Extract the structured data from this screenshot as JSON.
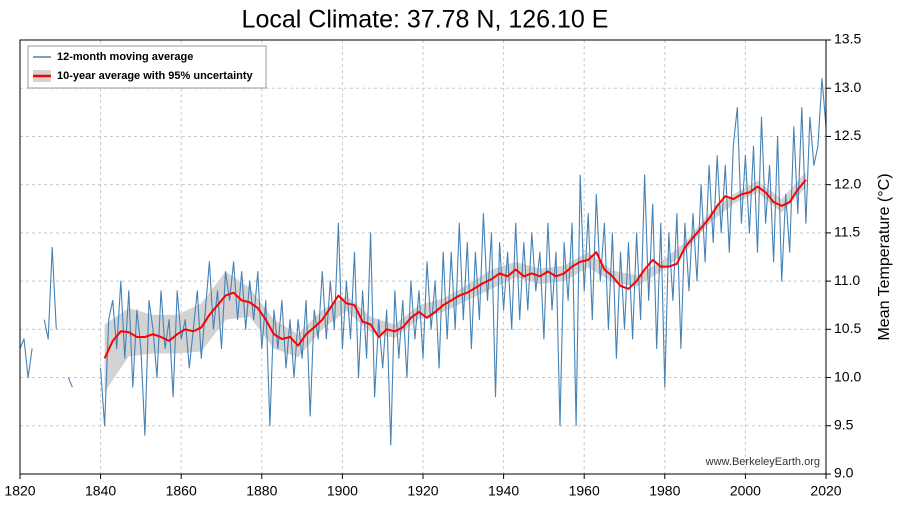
{
  "chart_data": {
    "type": "line",
    "title": "Local Climate: 37.78 N, 126.10 E",
    "y_label": "Mean Temperature (°C)",
    "credit": "www.BerkeleyEarth.org",
    "legend": "upper left",
    "grid": true,
    "xlim": [
      1820,
      2020
    ],
    "xticks": [
      1820,
      1840,
      1860,
      1880,
      1900,
      1920,
      1940,
      1960,
      1980,
      2000,
      2020
    ],
    "ylim": [
      9,
      13.5
    ],
    "yticks": [
      {
        "value": 9,
        "label": "9.0"
      },
      9.5,
      {
        "value": 10,
        "label": "10.0"
      },
      10.5,
      {
        "value": 11,
        "label": "11.0"
      },
      11.5,
      {
        "value": 12,
        "label": "12.0"
      },
      12.5,
      {
        "value": 13,
        "label": "13.0"
      },
      13.5
    ],
    "series": [
      {
        "name": "12-month moving average",
        "color": "#4682b4",
        "x": [
          1820,
          1821,
          1822,
          1823,
          1824,
          1826,
          1827,
          1828,
          1829,
          1830,
          1832,
          1833,
          1834,
          1840,
          1841,
          1842,
          1843,
          1844,
          1845,
          1846,
          1847,
          1848,
          1849,
          1850,
          1851,
          1852,
          1853,
          1854,
          1855,
          1856,
          1857,
          1858,
          1859,
          1860,
          1861,
          1862,
          1863,
          1864,
          1865,
          1866,
          1867,
          1868,
          1869,
          1870,
          1871,
          1872,
          1873,
          1874,
          1875,
          1876,
          1877,
          1878,
          1879,
          1880,
          1881,
          1882,
          1883,
          1884,
          1885,
          1886,
          1887,
          1888,
          1889,
          1890,
          1891,
          1892,
          1893,
          1894,
          1895,
          1896,
          1897,
          1898,
          1899,
          1900,
          1901,
          1902,
          1903,
          1904,
          1905,
          1906,
          1907,
          1908,
          1909,
          1910,
          1911,
          1912,
          1913,
          1914,
          1915,
          1916,
          1917,
          1918,
          1919,
          1920,
          1921,
          1922,
          1923,
          1924,
          1925,
          1926,
          1927,
          1928,
          1929,
          1930,
          1931,
          1932,
          1933,
          1934,
          1935,
          1936,
          1937,
          1938,
          1939,
          1940,
          1941,
          1942,
          1943,
          1944,
          1945,
          1946,
          1947,
          1948,
          1949,
          1950,
          1951,
          1952,
          1953,
          1954,
          1955,
          1956,
          1957,
          1958,
          1959,
          1960,
          1961,
          1962,
          1963,
          1964,
          1965,
          1966,
          1967,
          1968,
          1969,
          1970,
          1971,
          1972,
          1973,
          1974,
          1975,
          1976,
          1977,
          1978,
          1979,
          1980,
          1981,
          1982,
          1983,
          1984,
          1985,
          1986,
          1987,
          1988,
          1989,
          1990,
          1991,
          1992,
          1993,
          1994,
          1995,
          1996,
          1997,
          1998,
          1999,
          2000,
          2001,
          2002,
          2003,
          2004,
          2005,
          2006,
          2007,
          2008,
          2009,
          2010,
          2011,
          2012,
          2013,
          2014,
          2015,
          2016,
          2017,
          2018,
          2019,
          2020
        ],
        "values": [
          10.3,
          10.4,
          10.0,
          10.3,
          null,
          10.6,
          10.4,
          11.35,
          10.5,
          null,
          10.0,
          9.9,
          null,
          10.1,
          9.5,
          10.6,
          10.8,
          10.3,
          11.0,
          10.2,
          10.9,
          9.9,
          10.7,
          10.3,
          9.4,
          10.8,
          10.5,
          10.0,
          10.9,
          10.3,
          10.6,
          9.8,
          10.9,
          10.4,
          10.6,
          10.1,
          10.5,
          10.9,
          10.2,
          10.7,
          11.2,
          10.5,
          10.9,
          10.3,
          11.1,
          10.8,
          11.2,
          10.6,
          11.1,
          10.5,
          11.0,
          10.6,
          11.1,
          10.3,
          10.8,
          9.5,
          10.7,
          10.3,
          10.8,
          10.1,
          10.6,
          10.0,
          10.6,
          10.2,
          10.8,
          9.6,
          10.7,
          10.4,
          11.1,
          10.4,
          11.0,
          10.5,
          11.6,
          10.3,
          11.0,
          10.4,
          11.3,
          10.0,
          10.9,
          10.2,
          11.5,
          9.8,
          10.6,
          10.1,
          10.7,
          9.3,
          10.9,
          10.2,
          10.8,
          10.0,
          11.0,
          10.4,
          10.9,
          10.2,
          11.2,
          10.5,
          11.0,
          10.1,
          11.3,
          10.4,
          11.3,
          10.5,
          11.6,
          10.6,
          11.4,
          10.3,
          11.3,
          10.6,
          11.7,
          10.8,
          11.5,
          9.8,
          11.4,
          10.7,
          11.3,
          10.5,
          11.6,
          10.6,
          11.4,
          10.7,
          11.5,
          10.9,
          11.3,
          10.4,
          11.6,
          10.7,
          11.3,
          9.5,
          11.4,
          10.8,
          11.6,
          9.5,
          12.1,
          10.9,
          11.7,
          10.6,
          11.9,
          11.0,
          11.6,
          10.5,
          11.5,
          10.2,
          11.3,
          10.5,
          11.4,
          10.4,
          11.5,
          10.6,
          12.1,
          10.8,
          11.8,
          10.3,
          11.6,
          9.9,
          11.5,
          10.8,
          11.7,
          10.3,
          11.6,
          10.9,
          11.7,
          11.0,
          12.0,
          11.2,
          12.2,
          11.4,
          12.3,
          11.5,
          12.2,
          11.3,
          12.4,
          12.8,
          11.6,
          12.3,
          11.5,
          12.4,
          11.3,
          12.7,
          11.6,
          12.2,
          11.2,
          12.5,
          11.0,
          11.9,
          11.3,
          12.6,
          11.7,
          12.8,
          11.6,
          12.7,
          12.2,
          12.4,
          13.1,
          12.6
        ]
      },
      {
        "name": "10-year average with 95% uncertainty",
        "color": "#ff0000",
        "x": [
          1841,
          1843,
          1845,
          1847,
          1849,
          1851,
          1853,
          1855,
          1857,
          1859,
          1861,
          1863,
          1865,
          1867,
          1869,
          1871,
          1873,
          1875,
          1877,
          1879,
          1881,
          1883,
          1885,
          1887,
          1889,
          1891,
          1893,
          1895,
          1897,
          1899,
          1901,
          1903,
          1905,
          1907,
          1909,
          1911,
          1913,
          1915,
          1917,
          1919,
          1921,
          1923,
          1925,
          1927,
          1929,
          1931,
          1933,
          1935,
          1937,
          1939,
          1941,
          1943,
          1945,
          1947,
          1949,
          1951,
          1953,
          1955,
          1957,
          1959,
          1961,
          1963,
          1965,
          1967,
          1969,
          1971,
          1973,
          1975,
          1977,
          1979,
          1981,
          1983,
          1985,
          1987,
          1989,
          1991,
          1993,
          1995,
          1997,
          1999,
          2001,
          2003,
          2005,
          2007,
          2009,
          2011,
          2013,
          2015
        ],
        "values": [
          10.2,
          10.38,
          10.48,
          10.47,
          10.42,
          10.42,
          10.45,
          10.42,
          10.38,
          10.45,
          10.5,
          10.48,
          10.52,
          10.65,
          10.75,
          10.85,
          10.88,
          10.8,
          10.78,
          10.72,
          10.6,
          10.45,
          10.4,
          10.42,
          10.33,
          10.45,
          10.52,
          10.6,
          10.72,
          10.85,
          10.77,
          10.75,
          10.58,
          10.55,
          10.42,
          10.5,
          10.48,
          10.52,
          10.62,
          10.68,
          10.62,
          10.68,
          10.75,
          10.8,
          10.85,
          10.88,
          10.93,
          10.98,
          11.02,
          11.08,
          11.05,
          11.12,
          11.05,
          11.08,
          11.05,
          11.1,
          11.05,
          11.08,
          11.15,
          11.2,
          11.22,
          11.3,
          11.12,
          11.05,
          10.95,
          10.92,
          11.0,
          11.12,
          11.22,
          11.15,
          11.15,
          11.18,
          11.35,
          11.45,
          11.55,
          11.65,
          11.78,
          11.88,
          11.85,
          11.9,
          11.92,
          11.98,
          11.92,
          11.82,
          11.78,
          11.82,
          11.95,
          12.05
        ]
      }
    ],
    "band": {
      "color": "#d3d3d3",
      "x": [
        1841,
        1847,
        1853,
        1859,
        1865,
        1871,
        1877,
        1883,
        1889,
        1895,
        1901,
        1907,
        1913,
        1919,
        1925,
        1931,
        1937,
        1943,
        1949,
        1955,
        1961,
        1967,
        1973,
        1979,
        1985,
        1991,
        1997,
        2003,
        2009,
        2015
      ],
      "upper": [
        10.55,
        10.72,
        10.65,
        10.65,
        10.77,
        11.1,
        10.93,
        10.6,
        10.45,
        10.7,
        10.85,
        10.63,
        10.55,
        10.75,
        10.82,
        10.96,
        11.12,
        11.2,
        11.13,
        11.16,
        11.3,
        11.11,
        11.06,
        11.2,
        11.4,
        11.7,
        11.9,
        12.04,
        11.85,
        12.13
      ],
      "lower": [
        9.85,
        10.22,
        10.25,
        10.25,
        10.27,
        10.6,
        10.63,
        10.3,
        10.21,
        10.5,
        10.69,
        10.47,
        10.41,
        10.61,
        10.68,
        10.8,
        10.92,
        11.04,
        10.97,
        11.0,
        11.14,
        10.99,
        10.94,
        11.1,
        11.3,
        11.6,
        11.8,
        11.92,
        11.71,
        11.97
      ]
    }
  }
}
